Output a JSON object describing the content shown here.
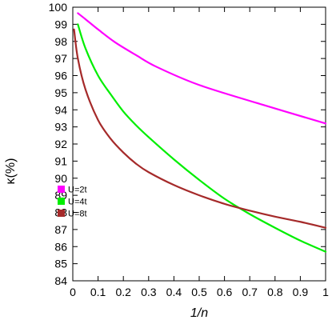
{
  "chart_data": {
    "type": "line",
    "xlabel": "1/n",
    "ylabel": "κ(%)",
    "xlim": [
      0,
      1
    ],
    "ylim": [
      84,
      100
    ],
    "x_ticks": [
      0,
      0.1,
      0.2,
      0.3,
      0.4,
      0.5,
      0.6,
      0.7,
      0.8,
      0.9,
      1
    ],
    "x_tick_labels": [
      "0",
      "0.1",
      "0.2",
      "0.3",
      "0.4",
      "0.5",
      "0.6",
      "0.7",
      "0.8",
      "0.9",
      "1"
    ],
    "y_ticks": [
      84,
      85,
      86,
      87,
      88,
      89,
      90,
      91,
      92,
      93,
      94,
      95,
      96,
      97,
      98,
      99,
      100
    ],
    "y_tick_labels": [
      "84",
      "85",
      "86",
      "87",
      "88",
      "89",
      "90",
      "91",
      "92",
      "93",
      "94",
      "95",
      "96",
      "97",
      "98",
      "99",
      "100"
    ],
    "grid": false,
    "legend_position": "left",
    "series": [
      {
        "name": "U=2t",
        "color": "#ff00ff",
        "x": [
          0.02,
          0.05,
          0.1,
          0.167,
          0.25,
          0.333,
          0.5,
          0.75,
          1.0
        ],
        "y": [
          99.65,
          99.3,
          98.7,
          97.95,
          97.2,
          96.5,
          95.45,
          94.3,
          93.2
        ]
      },
      {
        "name": "U=4t",
        "color": "#00ee00",
        "x": [
          0.02,
          0.05,
          0.1,
          0.15,
          0.2,
          0.25,
          0.3,
          0.4,
          0.5,
          0.6,
          0.7,
          0.8,
          0.9,
          1.0
        ],
        "y": [
          99.0,
          97.6,
          96.0,
          94.9,
          93.9,
          93.1,
          92.4,
          91.1,
          89.9,
          88.8,
          87.9,
          87.1,
          86.35,
          85.7
        ]
      },
      {
        "name": "U=8t",
        "color": "#a52a2a",
        "x": [
          0.005,
          0.02,
          0.05,
          0.1,
          0.15,
          0.2,
          0.25,
          0.3,
          0.4,
          0.5,
          0.6,
          0.7,
          0.8,
          0.9,
          1.0
        ],
        "y": [
          98.7,
          97.0,
          95.2,
          93.4,
          92.3,
          91.5,
          90.85,
          90.35,
          89.6,
          89.0,
          88.5,
          88.1,
          87.75,
          87.45,
          87.1
        ]
      }
    ]
  }
}
